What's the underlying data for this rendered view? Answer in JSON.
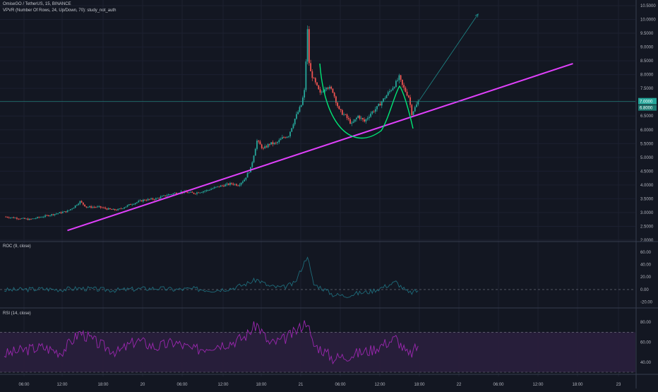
{
  "header": {
    "symbol": "OmiseGO / TetherUS, 15, BINANCE",
    "indicator": "VPVR (Number Of Rows, 24, Up/Down, 70): study_not_auth"
  },
  "price_panel": {
    "y_ticks": [
      "10.5000",
      "10.0000",
      "9.5000",
      "9.0000",
      "8.5000",
      "8.0000",
      "7.5000",
      "7.0000",
      "6.5000",
      "6.0000",
      "5.5000",
      "5.0000",
      "4.5000",
      "4.0000",
      "3.5000",
      "3.0000",
      "2.5000",
      "2.0000"
    ],
    "price_badge": "7.0000",
    "price_badge_2": "6.8000"
  },
  "roc_panel": {
    "label": "ROC (9, close)",
    "y_ticks": [
      "60.00",
      "40.00",
      "20.00",
      "0.00",
      "-20.00"
    ]
  },
  "rsi_panel": {
    "label": "RSI (14, close)",
    "y_ticks": [
      "80.00",
      "60.00",
      "40.00"
    ]
  },
  "x_ticks": [
    "06:00",
    "12:00",
    "18:00",
    "20",
    "06:00",
    "12:00",
    "18:00",
    "21",
    "06:00",
    "12:00",
    "18:00",
    "22",
    "06:00",
    "12:00",
    "18:00",
    "23"
  ],
  "colors": {
    "background": "#131722",
    "up": "#26a69a",
    "down": "#ef5350",
    "trendline": "#e040fb",
    "cup": "#00e676",
    "roc_line": "#1e6b7a",
    "rsi_line": "#9c27b0",
    "rsi_band": "#2a1f3d",
    "arrow": "#1e8a8a"
  },
  "chart_data": [
    {
      "type": "candlestick",
      "title": "OmiseGO / TetherUS, 15, BINANCE",
      "ylim": [
        2.0,
        10.5
      ],
      "close_path": [
        {
          "t": 0,
          "price": 2.85
        },
        {
          "t": 2,
          "price": 2.8
        },
        {
          "t": 4,
          "price": 2.75
        },
        {
          "t": 6,
          "price": 2.85
        },
        {
          "t": 8,
          "price": 2.95
        },
        {
          "t": 10,
          "price": 3.05
        },
        {
          "t": 11,
          "price": 3.2
        },
        {
          "t": 12,
          "price": 3.4
        },
        {
          "t": 13,
          "price": 3.2
        },
        {
          "t": 15,
          "price": 3.2
        },
        {
          "t": 17,
          "price": 3.1
        },
        {
          "t": 18,
          "price": 3.1
        },
        {
          "t": 20,
          "price": 3.3
        },
        {
          "t": 22,
          "price": 3.45
        },
        {
          "t": 24,
          "price": 3.5
        },
        {
          "t": 26,
          "price": 3.65
        },
        {
          "t": 28,
          "price": 3.75
        },
        {
          "t": 30,
          "price": 3.7
        },
        {
          "t": 32,
          "price": 3.8
        },
        {
          "t": 34,
          "price": 3.95
        },
        {
          "t": 36,
          "price": 4.05
        },
        {
          "t": 37,
          "price": 4.0
        },
        {
          "t": 38,
          "price": 4.2
        },
        {
          "t": 39,
          "price": 4.6
        },
        {
          "t": 40,
          "price": 5.6
        },
        {
          "t": 41,
          "price": 5.3
        },
        {
          "t": 42,
          "price": 5.5
        },
        {
          "t": 43,
          "price": 5.5
        },
        {
          "t": 44,
          "price": 5.7
        },
        {
          "t": 45,
          "price": 5.8
        },
        {
          "t": 46,
          "price": 6.4
        },
        {
          "t": 47,
          "price": 6.9
        },
        {
          "t": 47.5,
          "price": 7.4
        },
        {
          "t": 48,
          "price": 9.6
        },
        {
          "t": 48.3,
          "price": 8.2
        },
        {
          "t": 49,
          "price": 7.8
        },
        {
          "t": 50,
          "price": 7.3
        },
        {
          "t": 51,
          "price": 7.6
        },
        {
          "t": 52,
          "price": 7.4
        },
        {
          "t": 53,
          "price": 6.7
        },
        {
          "t": 54,
          "price": 6.5
        },
        {
          "t": 55,
          "price": 6.2
        },
        {
          "t": 56,
          "price": 6.5
        },
        {
          "t": 57,
          "price": 6.3
        },
        {
          "t": 58,
          "price": 6.6
        },
        {
          "t": 59,
          "price": 6.8
        },
        {
          "t": 60,
          "price": 7.1
        },
        {
          "t": 61,
          "price": 7.4
        },
        {
          "t": 62,
          "price": 7.7
        },
        {
          "t": 62.5,
          "price": 7.9
        },
        {
          "t": 63,
          "price": 7.6
        },
        {
          "t": 64,
          "price": 7.2
        },
        {
          "t": 64.5,
          "price": 6.6
        },
        {
          "t": 65,
          "price": 6.8
        },
        {
          "t": 65.5,
          "price": 7.0
        }
      ],
      "trendline": [
        {
          "t": 10,
          "price": 2.35
        },
        {
          "t": 90,
          "price": 8.4
        }
      ],
      "projection_arrow": [
        {
          "t": 65.5,
          "price": 7.0
        },
        {
          "t": 75,
          "price": 10.2
        }
      ]
    },
    {
      "type": "line",
      "title": "ROC (9, close)",
      "ylim": [
        -20,
        60
      ],
      "series": [
        {
          "name": "ROC (9, close)",
          "t": [
            0,
            3,
            6,
            9,
            12,
            15,
            18,
            21,
            24,
            27,
            30,
            33,
            36,
            38,
            40,
            42,
            44,
            46,
            48,
            48.5,
            49,
            50,
            52,
            54,
            56,
            58,
            60,
            62,
            64,
            65.5
          ],
          "values": [
            -1,
            0,
            1,
            0,
            2,
            0,
            -1,
            1,
            2,
            0,
            1,
            -1,
            2,
            8,
            16,
            5,
            3,
            10,
            55,
            28,
            8,
            4,
            -8,
            -10,
            -6,
            -3,
            4,
            12,
            -6,
            -2
          ]
        }
      ]
    },
    {
      "type": "line",
      "title": "RSI (14, close)",
      "ylim": [
        30,
        90
      ],
      "series": [
        {
          "name": "RSI (14, close)",
          "t": [
            0,
            3,
            6,
            9,
            12,
            15,
            18,
            21,
            24,
            27,
            30,
            33,
            36,
            38,
            40,
            42,
            44,
            46,
            48,
            48.5,
            49,
            50,
            52,
            54,
            56,
            58,
            60,
            62,
            64,
            65.5
          ],
          "values": [
            48,
            52,
            55,
            50,
            70,
            58,
            50,
            62,
            55,
            60,
            52,
            57,
            60,
            65,
            78,
            58,
            62,
            70,
            82,
            64,
            57,
            54,
            44,
            46,
            49,
            52,
            58,
            64,
            46,
            56
          ]
        }
      ],
      "bands": [
        30,
        70
      ]
    }
  ]
}
